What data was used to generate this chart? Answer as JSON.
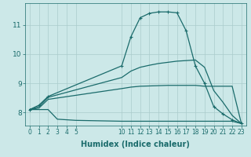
{
  "bg_color": "#cce8e8",
  "grid_color": "#aacccc",
  "line_color": "#1a6b6b",
  "line_width": 0.9,
  "marker_size": 2.5,
  "xlabel": "Humidex (Indice chaleur)",
  "xlabel_fontsize": 7,
  "ytick_fontsize": 6.5,
  "xtick_fontsize": 5.5,
  "xlim": [
    -0.5,
    23.5
  ],
  "ylim": [
    7.55,
    11.75
  ],
  "yticks": [
    8,
    9,
    10,
    11
  ],
  "xticks_left": [
    0,
    1,
    2,
    3,
    4,
    5
  ],
  "xticks_right": [
    10,
    11,
    12,
    13,
    14,
    15,
    16,
    17,
    18,
    19,
    20,
    21,
    22,
    23
  ],
  "curves": [
    {
      "x": [
        0,
        1,
        2,
        10,
        11,
        12,
        13,
        14,
        15,
        16,
        17,
        18,
        19,
        20,
        21,
        22,
        23
      ],
      "y": [
        8.1,
        8.25,
        8.55,
        9.6,
        10.6,
        11.25,
        11.4,
        11.45,
        11.45,
        11.42,
        10.8,
        9.6,
        9.0,
        8.2,
        7.95,
        7.75,
        7.62
      ],
      "has_markers": true
    },
    {
      "x": [
        0,
        1,
        2,
        10,
        11,
        12,
        13,
        14,
        15,
        16,
        17,
        18,
        19,
        20,
        21,
        22,
        23
      ],
      "y": [
        8.1,
        8.2,
        8.52,
        9.2,
        9.42,
        9.55,
        9.62,
        9.68,
        9.72,
        9.76,
        9.78,
        9.8,
        9.55,
        8.75,
        8.35,
        7.9,
        7.62
      ],
      "has_markers": false
    },
    {
      "x": [
        0,
        1,
        2,
        10,
        11,
        12,
        13,
        14,
        15,
        16,
        17,
        18,
        19,
        20,
        21,
        22,
        23
      ],
      "y": [
        8.1,
        8.15,
        8.45,
        8.82,
        8.87,
        8.9,
        8.91,
        8.92,
        8.93,
        8.93,
        8.93,
        8.93,
        8.9,
        8.9,
        8.9,
        8.9,
        7.62
      ],
      "has_markers": false
    },
    {
      "x": [
        0,
        1,
        2,
        3,
        4,
        5,
        10,
        11,
        12,
        13,
        14,
        15,
        16,
        17,
        18,
        19,
        20,
        21,
        22,
        23
      ],
      "y": [
        8.1,
        8.1,
        8.1,
        7.77,
        7.75,
        7.73,
        7.7,
        7.7,
        7.7,
        7.7,
        7.7,
        7.7,
        7.7,
        7.7,
        7.7,
        7.7,
        7.7,
        7.7,
        7.7,
        7.62
      ],
      "has_markers": false
    }
  ]
}
